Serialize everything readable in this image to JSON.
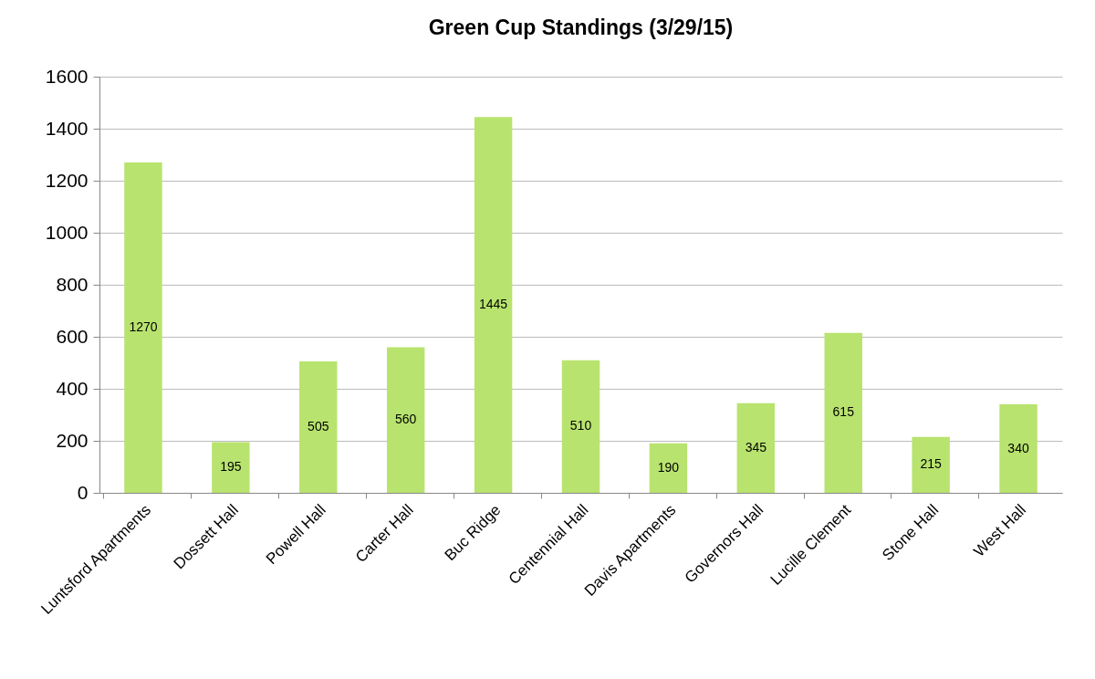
{
  "chart_data": {
    "type": "bar",
    "title": "Green Cup Standings (3/29/15)",
    "categories": [
      "Luntsford Apartments",
      "Dossett Hall",
      "Powell Hall",
      "Carter Hall",
      "Buc Ridge",
      "Centennial Hall",
      "Davis Apartments",
      "Governors Hall",
      "Lucille Clement",
      "Stone Hall",
      "West Hall"
    ],
    "values": [
      1270,
      195,
      505,
      560,
      1445,
      510,
      190,
      345,
      615,
      215,
      340
    ],
    "color": "#b8e36e",
    "ylim": [
      0,
      1600
    ],
    "yticks": [
      0,
      200,
      400,
      600,
      800,
      1000,
      1200,
      1400,
      1600
    ],
    "grid": "y",
    "data_labels": true
  }
}
